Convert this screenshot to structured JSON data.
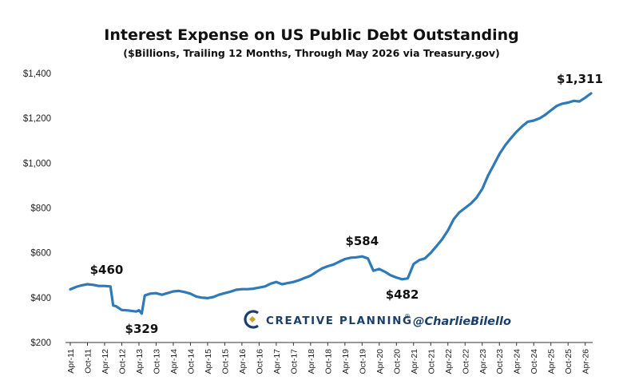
{
  "chart_data": {
    "type": "line",
    "title": "Interest Expense on US Public Debt Outstanding",
    "subtitle": "($Billions, Trailing 12 Months, Through May 2026 via Treasury.gov)",
    "ylim": [
      200,
      1400
    ],
    "yticks": [
      200,
      400,
      600,
      800,
      1000,
      1200,
      1400
    ],
    "ytick_labels": [
      "$200",
      "$400",
      "$600",
      "$800",
      "$1,000",
      "$1,200",
      "$1,400"
    ],
    "xlim": [
      2011.25,
      2026.42
    ],
    "xtick_labels": [
      "Apr-11",
      "Oct-11",
      "Apr-12",
      "Oct-12",
      "Apr-13",
      "Oct-13",
      "Apr-14",
      "Oct-14",
      "Apr-15",
      "Oct-15",
      "Apr-16",
      "Oct-16",
      "Apr-17",
      "Oct-17",
      "Apr-18",
      "Oct-18",
      "Apr-19",
      "Oct-19",
      "Apr-20",
      "Oct-20",
      "Apr-21",
      "Oct-21",
      "Apr-22",
      "Oct-22",
      "Apr-23",
      "Oct-23",
      "Apr-24",
      "Oct-24",
      "Apr-25",
      "Oct-25",
      "Apr-26"
    ],
    "grid": false,
    "line_color": "#2e7ab8",
    "series": [
      {
        "x": [
          2011.25,
          2011.42,
          2011.58,
          2011.75,
          2011.92,
          2012.08,
          2012.25,
          2012.42,
          2012.5,
          2012.58,
          2012.75,
          2012.92,
          2013.08,
          2013.17,
          2013.25,
          2013.33,
          2013.42,
          2013.58,
          2013.75,
          2013.92,
          2014.08,
          2014.25,
          2014.42,
          2014.58,
          2014.75,
          2014.92,
          2015.08,
          2015.25,
          2015.42,
          2015.58,
          2015.75,
          2015.92,
          2016.08,
          2016.25,
          2016.42,
          2016.58,
          2016.75,
          2016.92,
          2017.08,
          2017.25,
          2017.42,
          2017.58,
          2017.75,
          2017.92,
          2018.08,
          2018.25,
          2018.42,
          2018.58,
          2018.75,
          2018.92,
          2019.08,
          2019.25,
          2019.42,
          2019.58,
          2019.75,
          2019.92,
          2020.08,
          2020.25,
          2020.42,
          2020.58,
          2020.75,
          2020.92,
          2021.08,
          2021.17,
          2021.25,
          2021.42,
          2021.58,
          2021.75,
          2021.92,
          2022.08,
          2022.25,
          2022.42,
          2022.58,
          2022.75,
          2022.92,
          2023.08,
          2023.25,
          2023.42,
          2023.58,
          2023.75,
          2023.92,
          2024.08,
          2024.25,
          2024.42,
          2024.58,
          2024.75,
          2024.92,
          2025.08,
          2025.25,
          2025.42,
          2025.58,
          2025.75,
          2025.92,
          2026.08,
          2026.25,
          2026.42
        ],
        "values": [
          437,
          448,
          455,
          460,
          457,
          452,
          452,
          450,
          365,
          362,
          345,
          343,
          340,
          338,
          344,
          329,
          410,
          418,
          420,
          413,
          420,
          428,
          430,
          425,
          418,
          405,
          400,
          398,
          403,
          413,
          420,
          427,
          435,
          438,
          438,
          440,
          445,
          450,
          462,
          470,
          460,
          465,
          470,
          478,
          488,
          498,
          515,
          530,
          540,
          548,
          560,
          572,
          578,
          580,
          584,
          575,
          520,
          528,
          515,
          500,
          490,
          482,
          486,
          520,
          550,
          568,
          575,
          600,
          630,
          660,
          700,
          750,
          780,
          800,
          820,
          845,
          885,
          945,
          990,
          1040,
          1080,
          1110,
          1140,
          1165,
          1185,
          1190,
          1200,
          1215,
          1235,
          1255,
          1265,
          1270,
          1278,
          1275,
          1292,
          1311
        ]
      }
    ],
    "annotations": [
      {
        "label": "$460",
        "x": 2011.75,
        "y": 460
      },
      {
        "label": "$329",
        "x": 2013.33,
        "y": 329
      },
      {
        "label": "$584",
        "x": 2019.75,
        "y": 584
      },
      {
        "label": "$482",
        "x": 2020.92,
        "y": 482
      },
      {
        "label": "$1,311",
        "x": 2026.42,
        "y": 1311
      }
    ]
  },
  "branding": {
    "logo_icon": "creative-planning-c-logo",
    "logo_colors": [
      "#1b3f6b",
      "#c9a227"
    ],
    "company": "CREATIVE PLANNING",
    "registered": "®",
    "handle": "@CharlieBilello"
  }
}
